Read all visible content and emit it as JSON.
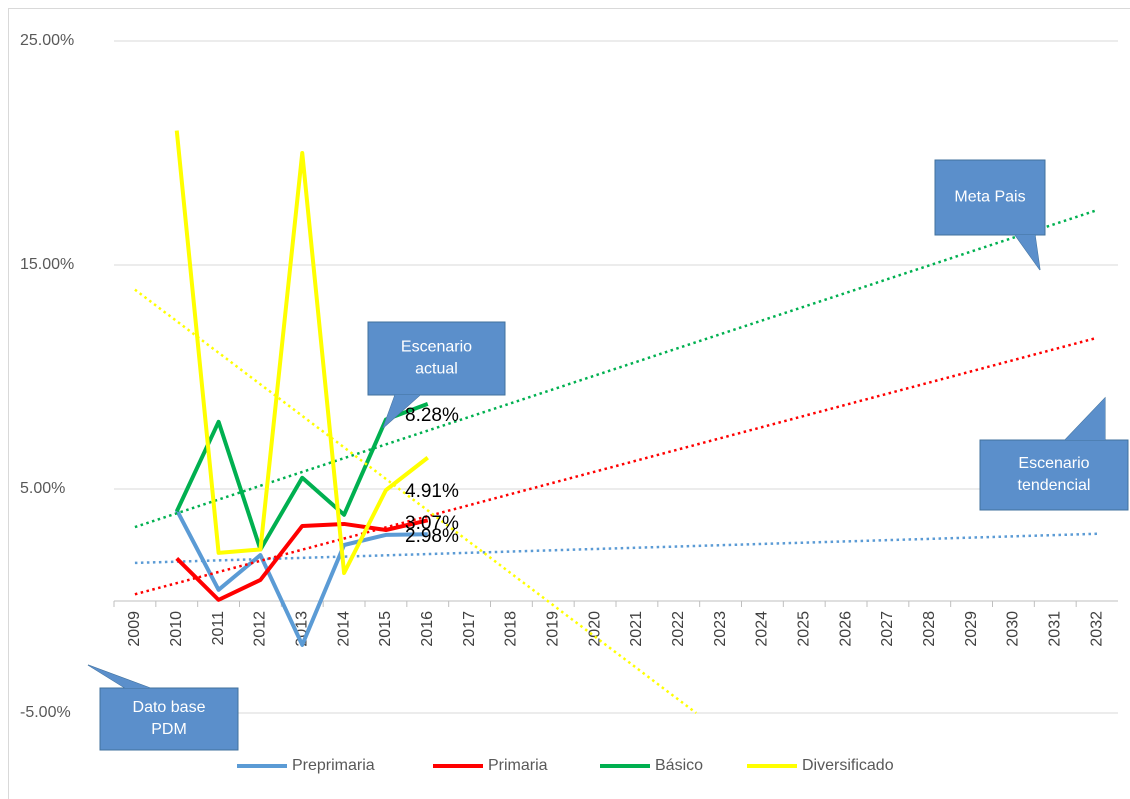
{
  "chart_data": {
    "type": "line",
    "categories": [
      "2009",
      "2010",
      "2011",
      "2012",
      "2013",
      "2014",
      "2015",
      "2016",
      "2017",
      "2018",
      "2019",
      "2020",
      "2021",
      "2022",
      "2023",
      "2024",
      "2025",
      "2026",
      "2027",
      "2028",
      "2029",
      "2030",
      "2031",
      "2032"
    ],
    "ylim": [
      -5,
      25
    ],
    "yticks": [
      {
        "value": -5,
        "label": "-5.00%"
      },
      {
        "value": 5,
        "label": "5.00%"
      },
      {
        "value": 15,
        "label": "15.00%"
      },
      {
        "value": 25,
        "label": "25.00%"
      }
    ],
    "grid": true,
    "series": [
      {
        "name": "Preprimaria",
        "color": "#5b9bd5",
        "values": [
          null,
          4.06,
          0.5,
          2.05,
          -1.96,
          2.5,
          2.95,
          2.98,
          null,
          null,
          null,
          null,
          null,
          null,
          null,
          null,
          null,
          null,
          null,
          null,
          null,
          null,
          null,
          null
        ],
        "trendline": [
          1.7,
          3.0
        ]
      },
      {
        "name": "Primaria",
        "color": "#ff0000",
        "values": [
          null,
          1.9,
          0.05,
          0.94,
          3.35,
          3.44,
          3.17,
          3.6,
          null,
          null,
          null,
          null,
          null,
          null,
          null,
          null,
          null,
          null,
          null,
          null,
          null,
          null,
          null,
          null
        ],
        "trendline": [
          0.3,
          11.75
        ]
      },
      {
        "name": "Básico",
        "color": "#00b050",
        "values": [
          null,
          4.0,
          8.0,
          2.3,
          5.5,
          3.85,
          8.1,
          8.8,
          null,
          null,
          null,
          null,
          null,
          null,
          null,
          null,
          null,
          null,
          null,
          null,
          null,
          null,
          null,
          null
        ],
        "trendline": [
          3.3,
          17.45
        ]
      },
      {
        "name": "Diversificado",
        "color": "#ffff00",
        "values": [
          null,
          21.0,
          2.15,
          2.3,
          20.0,
          1.25,
          4.95,
          6.4,
          null,
          null,
          null,
          null,
          null,
          null,
          null,
          null,
          null,
          null,
          null,
          null,
          null,
          null,
          null,
          null
        ],
        "trendline": [
          13.9,
          -18.5
        ]
      }
    ],
    "annotations": [
      "8.28%",
      "4.91%",
      "3.07%",
      "2.98%"
    ],
    "callouts": [
      [
        "Meta  Pais"
      ],
      [
        "Escenario",
        "actual"
      ],
      [
        "Escenario",
        "tendencial"
      ],
      [
        "Dato base",
        "PDM"
      ]
    ],
    "legend": "bottom"
  }
}
